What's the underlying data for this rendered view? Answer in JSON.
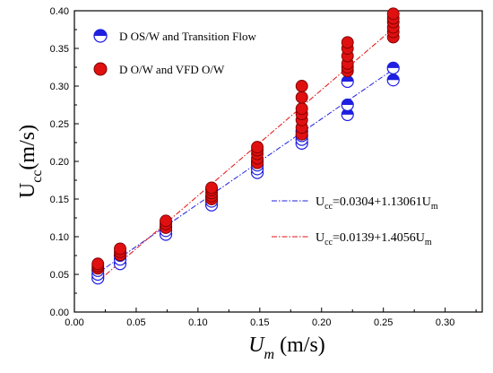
{
  "chart_data": {
    "type": "scatter",
    "xlim": [
      0.0,
      0.33
    ],
    "ylim": [
      0.0,
      0.4
    ],
    "x_ticks": [
      "0.00",
      "0.05",
      "0.10",
      "0.15",
      "0.20",
      "0.25",
      "0.30"
    ],
    "y_ticks": [
      "0.00",
      "0.05",
      "0.10",
      "0.15",
      "0.20",
      "0.25",
      "0.30",
      "0.35",
      "0.40"
    ],
    "xlabel": {
      "main": "U",
      "sub": "m",
      "unit": " (m/s)"
    },
    "ylabel": {
      "main": "U",
      "sub": "cc",
      "unit": "(m/s)"
    },
    "grid": false,
    "legend_placement": "top-left",
    "series": [
      {
        "name": "D OS/W  and  Transition Flow",
        "marker": "half-filled-circle",
        "color": "#1f1fe0",
        "points": [
          [
            0.019,
            0.045
          ],
          [
            0.019,
            0.05
          ],
          [
            0.019,
            0.055
          ],
          [
            0.037,
            0.064
          ],
          [
            0.037,
            0.07
          ],
          [
            0.037,
            0.075
          ],
          [
            0.074,
            0.103
          ],
          [
            0.074,
            0.108
          ],
          [
            0.074,
            0.113
          ],
          [
            0.111,
            0.142
          ],
          [
            0.111,
            0.147
          ],
          [
            0.111,
            0.152
          ],
          [
            0.148,
            0.185
          ],
          [
            0.148,
            0.19
          ],
          [
            0.148,
            0.195
          ],
          [
            0.148,
            0.2
          ],
          [
            0.184,
            0.224
          ],
          [
            0.184,
            0.229
          ],
          [
            0.184,
            0.234
          ],
          [
            0.184,
            0.24
          ],
          [
            0.221,
            0.262
          ],
          [
            0.221,
            0.275
          ],
          [
            0.221,
            0.306
          ],
          [
            0.258,
            0.308
          ],
          [
            0.258,
            0.324
          ]
        ]
      },
      {
        "name": "D O/W  and VFD O/W",
        "marker": "filled-circle",
        "color": "#e01010",
        "points": [
          [
            0.019,
            0.058
          ],
          [
            0.019,
            0.061
          ],
          [
            0.019,
            0.064
          ],
          [
            0.037,
            0.076
          ],
          [
            0.037,
            0.08
          ],
          [
            0.037,
            0.084
          ],
          [
            0.074,
            0.112
          ],
          [
            0.074,
            0.117
          ],
          [
            0.074,
            0.121
          ],
          [
            0.111,
            0.15
          ],
          [
            0.111,
            0.154
          ],
          [
            0.111,
            0.158
          ],
          [
            0.111,
            0.162
          ],
          [
            0.111,
            0.165
          ],
          [
            0.148,
            0.198
          ],
          [
            0.148,
            0.204
          ],
          [
            0.148,
            0.21
          ],
          [
            0.148,
            0.215
          ],
          [
            0.148,
            0.219
          ],
          [
            0.184,
            0.236
          ],
          [
            0.184,
            0.245
          ],
          [
            0.184,
            0.255
          ],
          [
            0.184,
            0.263
          ],
          [
            0.184,
            0.27
          ],
          [
            0.184,
            0.285
          ],
          [
            0.184,
            0.3
          ],
          [
            0.221,
            0.32
          ],
          [
            0.221,
            0.325
          ],
          [
            0.221,
            0.33
          ],
          [
            0.221,
            0.34
          ],
          [
            0.221,
            0.35
          ],
          [
            0.221,
            0.358
          ],
          [
            0.258,
            0.365
          ],
          [
            0.258,
            0.372
          ],
          [
            0.258,
            0.378
          ],
          [
            0.258,
            0.385
          ],
          [
            0.258,
            0.39
          ],
          [
            0.258,
            0.396
          ]
        ]
      }
    ],
    "fit_lines": [
      {
        "intercept": 0.0304,
        "slope": 1.13061,
        "x_range": [
          0.019,
          0.258
        ],
        "color": "#1f1fe0",
        "style": "dash-dot",
        "label_lhs": "U",
        "label_lhs_sub": "cc",
        "label_rhs": "=0.0304+1.13061U",
        "label_rhs_sub": "m"
      },
      {
        "intercept": 0.0139,
        "slope": 1.4056,
        "x_range": [
          0.019,
          0.258
        ],
        "color": "#e01010",
        "style": "dash-dot",
        "label_lhs": "U",
        "label_lhs_sub": "cc",
        "label_rhs": "=0.0139+1.4056U",
        "label_rhs_sub": "m"
      }
    ]
  }
}
